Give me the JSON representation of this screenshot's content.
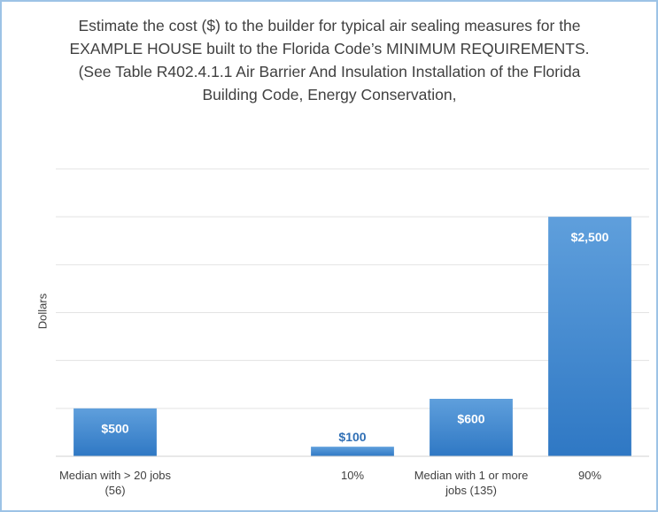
{
  "chart_data": {
    "type": "bar",
    "title": "Estimate the cost ($) to the builder for typical air sealing measures for the EXAMPLE HOUSE built to the Florida Code’s MINIMUM REQUIREMENTS. (See Table R402.4.1.1 Air Barrier And Insulation Installation of the Florida Building Code, Energy Conservation,",
    "y_label": "Dollars",
    "categories": [
      "Median with > 20 jobs (56)",
      null,
      "10%",
      "Median with 1 or more jobs (135)",
      "90%"
    ],
    "values": [
      500,
      null,
      100,
      600,
      2500
    ],
    "value_labels": [
      "$500",
      null,
      "$100",
      "$600",
      "$2,500"
    ],
    "color": "#4a8fd3",
    "ylim": [
      0,
      3000
    ],
    "yticks": [
      0,
      500,
      1000,
      1500,
      2000,
      2500,
      3000
    ],
    "grid": true
  }
}
